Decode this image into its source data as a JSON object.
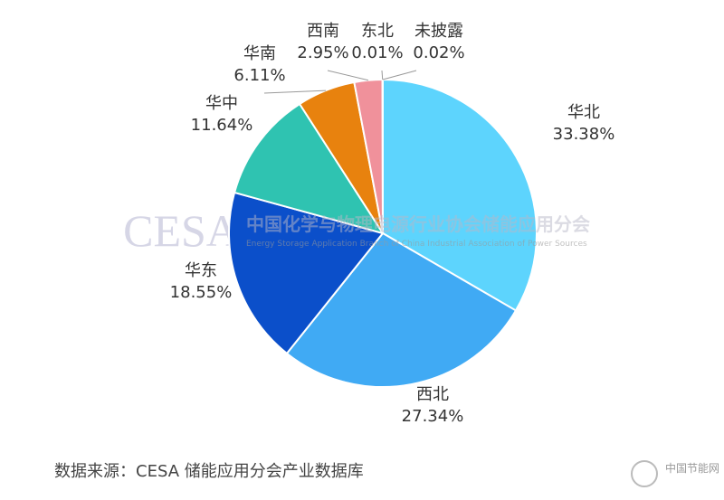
{
  "chart_data": {
    "type": "pie",
    "categories": [
      "华北",
      "西北",
      "华东",
      "华中",
      "华南",
      "西南",
      "东北",
      "未披露"
    ],
    "values": [
      33.38,
      27.34,
      18.55,
      11.64,
      6.11,
      2.95,
      0.01,
      0.02
    ],
    "value_labels": [
      "33.38%",
      "27.34%",
      "18.55%",
      "11.64%",
      "6.11%",
      "2.95%",
      "0.01%",
      "0.02%"
    ],
    "colors": [
      "#5dd4fd",
      "#40aaf4",
      "#0b4fca",
      "#2fc3b1",
      "#e8820e",
      "#f0919b",
      "#9aa0a6",
      "#c7c7c7"
    ],
    "watermark_logo": "CESA",
    "watermark_name": "中国化学与物理电源行业协会储能应用分会",
    "watermark_name_en": "Energy Storage Application Branch of China Industrial Association of Power Sources",
    "source": "数据来源：CESA 储能应用分会产业数据库",
    "site_logo": "中国节能网"
  }
}
